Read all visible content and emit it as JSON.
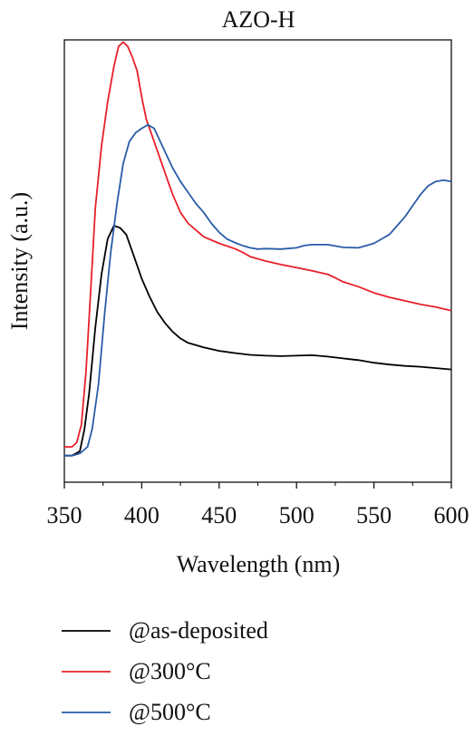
{
  "chart_data": {
    "type": "line",
    "title": "AZO-H",
    "xlabel": "Wavelength (nm)",
    "ylabel": "Intensity (a.u.)",
    "xlim": [
      350,
      600
    ],
    "ylim": [
      0,
      1
    ],
    "xticks": [
      350,
      400,
      450,
      500,
      550,
      600
    ],
    "yticks_shown": false,
    "grid": false,
    "legend_position": "bottom",
    "series": [
      {
        "name": "@as-deposited",
        "color": "#000000",
        "points": [
          [
            350,
            0.06
          ],
          [
            355,
            0.06
          ],
          [
            360,
            0.07
          ],
          [
            363,
            0.12
          ],
          [
            366,
            0.2
          ],
          [
            370,
            0.35
          ],
          [
            374,
            0.47
          ],
          [
            378,
            0.55
          ],
          [
            382,
            0.58
          ],
          [
            386,
            0.575
          ],
          [
            390,
            0.56
          ],
          [
            395,
            0.51
          ],
          [
            400,
            0.46
          ],
          [
            405,
            0.42
          ],
          [
            410,
            0.385
          ],
          [
            415,
            0.36
          ],
          [
            420,
            0.34
          ],
          [
            425,
            0.325
          ],
          [
            430,
            0.315
          ],
          [
            440,
            0.305
          ],
          [
            450,
            0.297
          ],
          [
            460,
            0.292
          ],
          [
            470,
            0.288
          ],
          [
            480,
            0.286
          ],
          [
            490,
            0.285
          ],
          [
            500,
            0.286
          ],
          [
            510,
            0.287
          ],
          [
            520,
            0.284
          ],
          [
            530,
            0.28
          ],
          [
            540,
            0.276
          ],
          [
            550,
            0.27
          ],
          [
            560,
            0.266
          ],
          [
            570,
            0.263
          ],
          [
            580,
            0.261
          ],
          [
            590,
            0.258
          ],
          [
            600,
            0.255
          ]
        ]
      },
      {
        "name": "@300°C",
        "color": "#e8202a",
        "points": [
          [
            350,
            0.08
          ],
          [
            355,
            0.08
          ],
          [
            358,
            0.09
          ],
          [
            361,
            0.13
          ],
          [
            364,
            0.25
          ],
          [
            367,
            0.43
          ],
          [
            370,
            0.62
          ],
          [
            374,
            0.76
          ],
          [
            378,
            0.86
          ],
          [
            382,
            0.94
          ],
          [
            385,
            0.985
          ],
          [
            388,
            0.995
          ],
          [
            391,
            0.985
          ],
          [
            394,
            0.96
          ],
          [
            397,
            0.93
          ],
          [
            400,
            0.87
          ],
          [
            403,
            0.82
          ],
          [
            407,
            0.78
          ],
          [
            412,
            0.73
          ],
          [
            417,
            0.68
          ],
          [
            420,
            0.65
          ],
          [
            425,
            0.61
          ],
          [
            430,
            0.585
          ],
          [
            435,
            0.57
          ],
          [
            440,
            0.555
          ],
          [
            450,
            0.54
          ],
          [
            460,
            0.528
          ],
          [
            465,
            0.52
          ],
          [
            470,
            0.51
          ],
          [
            480,
            0.5
          ],
          [
            490,
            0.492
          ],
          [
            500,
            0.485
          ],
          [
            510,
            0.478
          ],
          [
            520,
            0.47
          ],
          [
            525,
            0.462
          ],
          [
            530,
            0.453
          ],
          [
            540,
            0.442
          ],
          [
            550,
            0.428
          ],
          [
            560,
            0.418
          ],
          [
            570,
            0.41
          ],
          [
            580,
            0.402
          ],
          [
            590,
            0.396
          ],
          [
            600,
            0.388
          ]
        ]
      },
      {
        "name": "@500°C",
        "color": "#2a5ca6",
        "points": [
          [
            350,
            0.06
          ],
          [
            355,
            0.06
          ],
          [
            360,
            0.065
          ],
          [
            365,
            0.08
          ],
          [
            368,
            0.12
          ],
          [
            372,
            0.22
          ],
          [
            376,
            0.38
          ],
          [
            380,
            0.52
          ],
          [
            384,
            0.63
          ],
          [
            388,
            0.72
          ],
          [
            392,
            0.77
          ],
          [
            396,
            0.79
          ],
          [
            400,
            0.8
          ],
          [
            404,
            0.808
          ],
          [
            408,
            0.8
          ],
          [
            412,
            0.77
          ],
          [
            416,
            0.74
          ],
          [
            420,
            0.71
          ],
          [
            425,
            0.68
          ],
          [
            430,
            0.655
          ],
          [
            435,
            0.63
          ],
          [
            440,
            0.61
          ],
          [
            445,
            0.585
          ],
          [
            450,
            0.565
          ],
          [
            455,
            0.55
          ],
          [
            460,
            0.542
          ],
          [
            465,
            0.535
          ],
          [
            470,
            0.53
          ],
          [
            475,
            0.527
          ],
          [
            480,
            0.528
          ],
          [
            490,
            0.527
          ],
          [
            500,
            0.53
          ],
          [
            505,
            0.535
          ],
          [
            510,
            0.537
          ],
          [
            520,
            0.537
          ],
          [
            530,
            0.531
          ],
          [
            540,
            0.53
          ],
          [
            550,
            0.54
          ],
          [
            555,
            0.55
          ],
          [
            560,
            0.56
          ],
          [
            565,
            0.58
          ],
          [
            570,
            0.6
          ],
          [
            575,
            0.625
          ],
          [
            580,
            0.65
          ],
          [
            585,
            0.67
          ],
          [
            590,
            0.68
          ],
          [
            595,
            0.683
          ],
          [
            600,
            0.68
          ]
        ]
      }
    ]
  }
}
